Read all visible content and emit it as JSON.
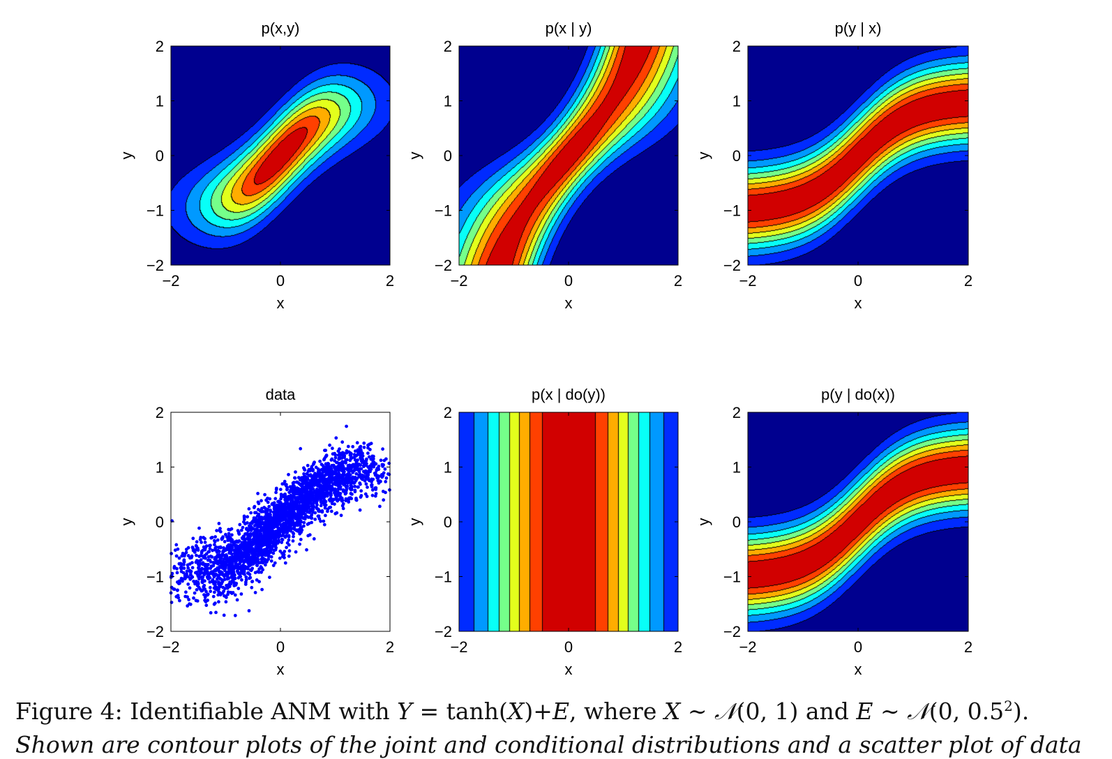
{
  "figure": {
    "caption_label": "Figure 4:",
    "caption_text_1": " Identifiable ANM with ",
    "caption_eq_1": "Y",
    "caption_eq_2": " = tanh(",
    "caption_eq_3": "X",
    "caption_eq_4": ")+",
    "caption_eq_5": "E",
    "caption_text_2": ", where ",
    "caption_eq_6": "X",
    "caption_eq_7": " ∼ ",
    "caption_eq_8": "𝒩",
    "caption_eq_9": "(0, 1) and ",
    "caption_eq_10": "E",
    "caption_eq_11": " ∼ ",
    "caption_eq_12": "𝒩",
    "caption_eq_13": "(0, 0.5",
    "caption_eq_14": "2",
    "caption_eq_15": ").",
    "caption_line_2": "Shown are contour plots of the joint and conditional distributions and a scatter plot of data"
  },
  "chart_data": [
    {
      "type": "heatmap",
      "title": "p(x,y)",
      "xlabel": "x",
      "ylabel": "y",
      "xlim": [
        -2,
        2
      ],
      "ylim": [
        -2,
        2
      ],
      "xticks": [
        "−2",
        "0",
        "2"
      ],
      "yticks": [
        "−2",
        "−1",
        "0",
        "1",
        "2"
      ],
      "colormap": "jet",
      "style": "filled-contour",
      "model": "joint",
      "noise_sd": 0.5
    },
    {
      "type": "heatmap",
      "title": "p(x | y)",
      "xlabel": "x",
      "ylabel": "y",
      "xlim": [
        -2,
        2
      ],
      "ylim": [
        -2,
        2
      ],
      "xticks": [
        "−2",
        "0",
        "2"
      ],
      "yticks": [
        "−2",
        "−1",
        "0",
        "1",
        "2"
      ],
      "colormap": "jet",
      "style": "filled-contour",
      "model": "x_given_y"
    },
    {
      "type": "heatmap",
      "title": "p(y | x)",
      "xlabel": "x",
      "ylabel": "y",
      "xlim": [
        -2,
        2
      ],
      "ylim": [
        -2,
        2
      ],
      "xticks": [
        "−2",
        "0",
        "2"
      ],
      "yticks": [
        "−2",
        "−1",
        "0",
        "1",
        "2"
      ],
      "colormap": "jet",
      "style": "filled-contour",
      "model": "y_given_x"
    },
    {
      "type": "scatter",
      "title": "data",
      "xlabel": "x",
      "ylabel": "y",
      "xlim": [
        -2,
        2
      ],
      "ylim": [
        -2,
        2
      ],
      "xticks": [
        "−2",
        "0",
        "2"
      ],
      "yticks": [
        "−2",
        "−1",
        "0",
        "1",
        "2"
      ],
      "color": "#0000ff",
      "n_points": 3000,
      "model": "y = tanh(x) + e"
    },
    {
      "type": "heatmap",
      "title": "p(x | do(y))",
      "xlabel": "x",
      "ylabel": "y",
      "xlim": [
        -2,
        2
      ],
      "ylim": [
        -2,
        2
      ],
      "xticks": [
        "−2",
        "0",
        "2"
      ],
      "yticks": [
        "−2",
        "−1",
        "0",
        "1",
        "2"
      ],
      "colormap": "jet",
      "style": "filled-contour",
      "model": "x_marginal"
    },
    {
      "type": "heatmap",
      "title": "p(y | do(x))",
      "xlabel": "x",
      "ylabel": "y",
      "xlim": [
        -2,
        2
      ],
      "ylim": [
        -2,
        2
      ],
      "xticks": [
        "−2",
        "0",
        "2"
      ],
      "yticks": [
        "−2",
        "−1",
        "0",
        "1",
        "2"
      ],
      "colormap": "jet",
      "style": "filled-contour",
      "model": "y_given_x"
    }
  ]
}
